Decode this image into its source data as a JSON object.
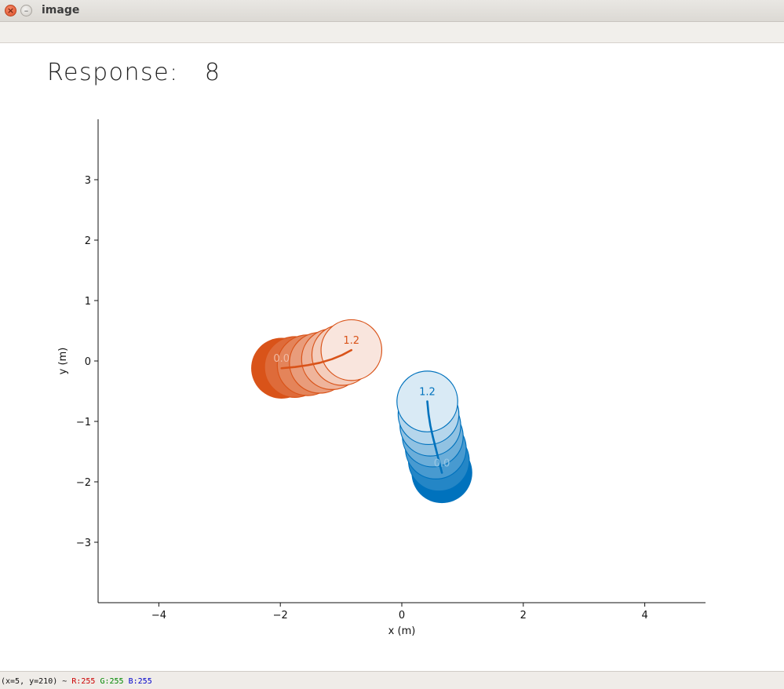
{
  "window": {
    "title": "image"
  },
  "response": {
    "label": "Response:",
    "value": "8"
  },
  "status": {
    "coords": "(x=5, y=210) ~",
    "r": "R:255",
    "g": "G:255",
    "b": "B:255"
  },
  "chart_data": {
    "type": "scatter",
    "xlabel": "x (m)",
    "ylabel": "y (m)",
    "xlim": [
      -5,
      5
    ],
    "ylim": [
      -4,
      4
    ],
    "xticks": [
      -4,
      -2,
      0,
      2,
      4
    ],
    "yticks": [
      -3,
      -2,
      -1,
      0,
      1,
      2,
      3
    ],
    "xtick_labels": [
      "−4",
      "−2",
      "0",
      "2",
      "4"
    ],
    "ytick_labels": [
      "−3",
      "−2",
      "−1",
      "0",
      "1",
      "2",
      "3"
    ],
    "grid": false,
    "agent_radius": 0.5,
    "agents": [
      {
        "color": "#d95319",
        "start_label": "0.0",
        "end_label": "1.2",
        "trajectory": [
          {
            "x": -1.98,
            "y": -0.12
          },
          {
            "x": -1.76,
            "y": -0.1
          },
          {
            "x": -1.55,
            "y": -0.07
          },
          {
            "x": -1.35,
            "y": -0.03
          },
          {
            "x": -1.15,
            "y": 0.03
          },
          {
            "x": -0.98,
            "y": 0.1
          },
          {
            "x": -0.83,
            "y": 0.18
          }
        ]
      },
      {
        "color": "#0072bd",
        "start_label": "0.0",
        "end_label": "1.2",
        "trajectory": [
          {
            "x": 0.66,
            "y": -1.85
          },
          {
            "x": 0.61,
            "y": -1.65
          },
          {
            "x": 0.56,
            "y": -1.45
          },
          {
            "x": 0.51,
            "y": -1.25
          },
          {
            "x": 0.47,
            "y": -1.07
          },
          {
            "x": 0.44,
            "y": -0.88
          },
          {
            "x": 0.42,
            "y": -0.67
          }
        ]
      }
    ]
  }
}
